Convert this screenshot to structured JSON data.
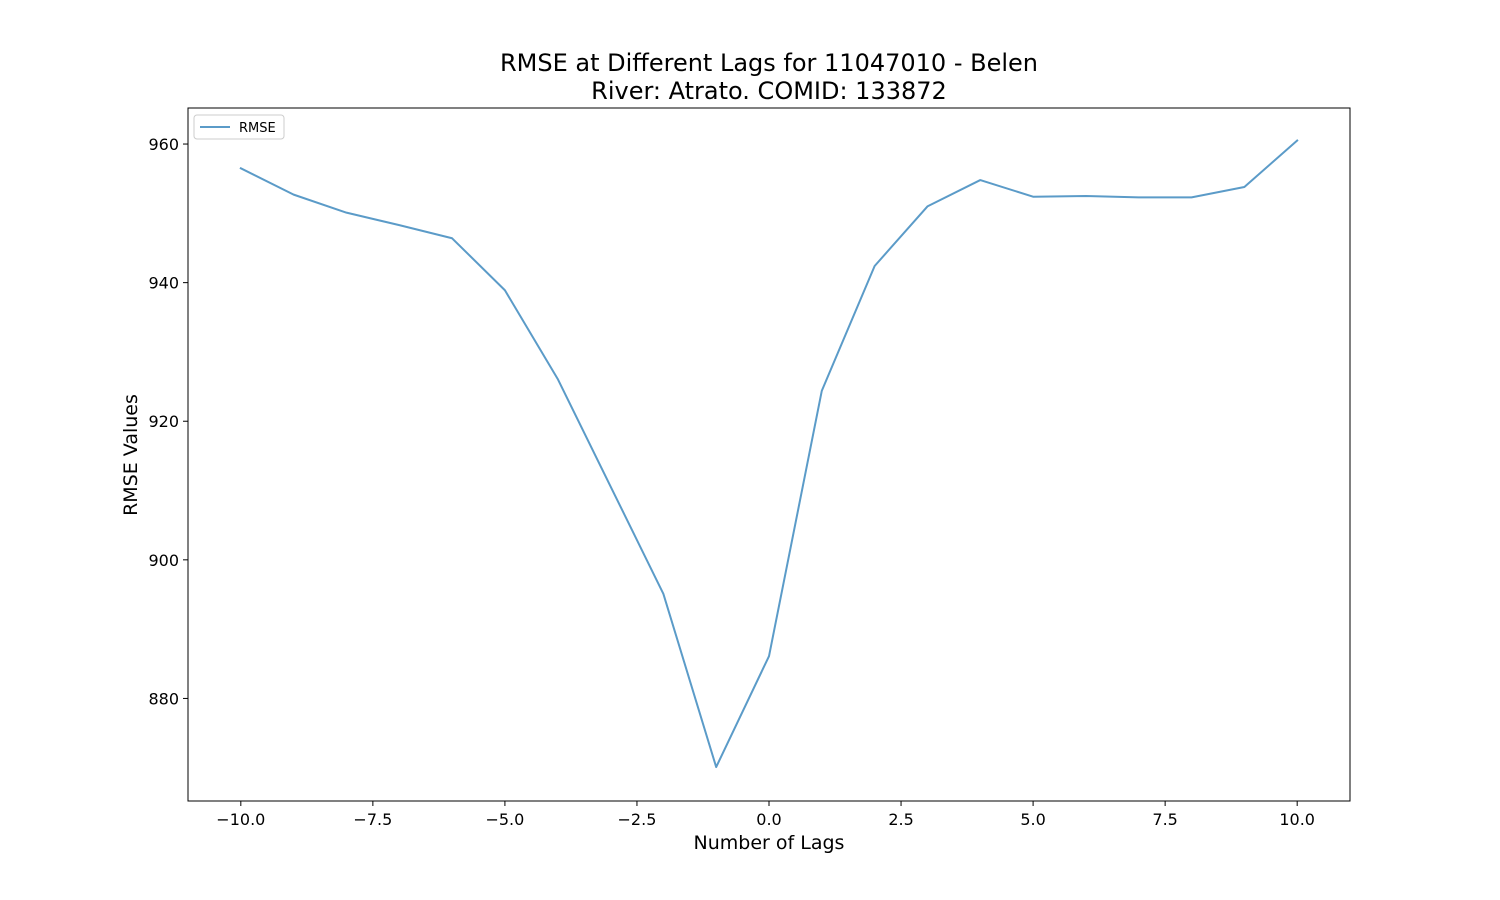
{
  "chart_data": {
    "type": "line",
    "title_line1": "RMSE at Different Lags for 11047010 - Belen",
    "title_line2": "River: Atrato. COMID: 133872",
    "xlabel": "Number of Lags",
    "ylabel": "RMSE Values",
    "xlim": [
      -11,
      11
    ],
    "ylim": [
      865.2,
      965.2
    ],
    "xticks": [
      -10.0,
      -7.5,
      -5.0,
      -2.5,
      0.0,
      2.5,
      5.0,
      7.5,
      10.0
    ],
    "xtick_labels": [
      "−10.0",
      "−7.5",
      "−5.0",
      "−2.5",
      "0.0",
      "2.5",
      "5.0",
      "7.5",
      "10.0"
    ],
    "yticks": [
      880,
      900,
      920,
      940,
      960
    ],
    "ytick_labels": [
      "880",
      "900",
      "920",
      "940",
      "960"
    ],
    "grid": false,
    "legend_position": "top-left",
    "series": [
      {
        "name": "RMSE",
        "color": "#5b9bc8",
        "x": [
          -10,
          -9,
          -8,
          -7,
          -6,
          -5,
          -4,
          -3,
          -2,
          -1,
          0,
          1,
          2,
          3,
          4,
          5,
          6,
          7,
          8,
          9,
          10
        ],
        "y": [
          956.5,
          952.7,
          950.1,
          948.3,
          946.4,
          938.9,
          926.1,
          910.6,
          895.1,
          870.1,
          886.1,
          924.4,
          942.4,
          951.0,
          954.8,
          952.4,
          952.5,
          952.3,
          952.3,
          953.8,
          960.5
        ]
      }
    ]
  }
}
